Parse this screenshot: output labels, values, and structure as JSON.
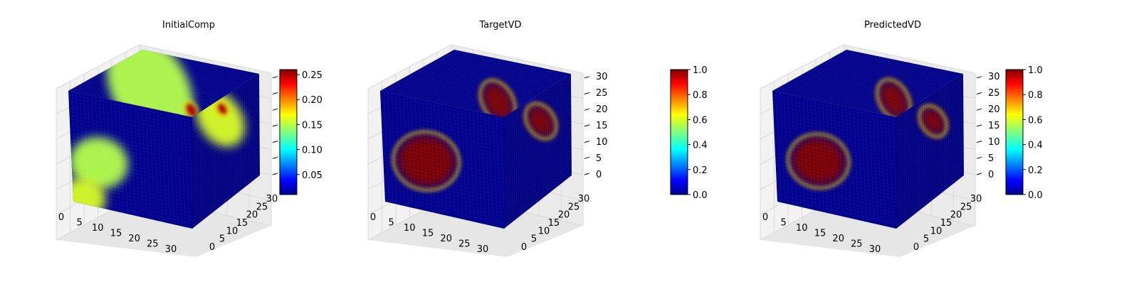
{
  "figure": {
    "background": "#ffffff",
    "pane_color": "#f2f2f2",
    "grid_color": "#d9d9d9",
    "low_color": "#00008f",
    "colormap": "jet"
  },
  "chart_data": [
    {
      "type": "heatmap",
      "title": "InitialComp",
      "volume_shape": [
        32,
        32,
        32
      ],
      "x_ticks": [
        "0",
        "5",
        "10",
        "15",
        "20",
        "25",
        "30"
      ],
      "y_ticks": [
        "0",
        "5",
        "10",
        "15",
        "20",
        "25",
        "30"
      ],
      "z_ticks": [],
      "colorbar": {
        "ticks": [
          "0.05",
          "0.10",
          "0.15",
          "0.20",
          "0.25"
        ],
        "tick_values": [
          0.05,
          0.1,
          0.15,
          0.2,
          0.25
        ],
        "range": [
          0.01,
          0.26
        ]
      },
      "blobs": [
        {
          "face": "top",
          "u": 0.35,
          "v": 0.45,
          "r": 0.5,
          "value": 0.15
        },
        {
          "face": "top",
          "u": 0.12,
          "v": 0.92,
          "r": 0.07,
          "value": 0.25
        },
        {
          "face": "front",
          "u": 0.22,
          "v": 0.6,
          "r": 0.26,
          "value": 0.15
        },
        {
          "face": "front",
          "u": 0.08,
          "v": 0.95,
          "r": 0.2,
          "value": 0.16
        },
        {
          "face": "side",
          "u": 0.42,
          "v": 0.18,
          "r": 0.3,
          "value": 0.16
        },
        {
          "face": "side",
          "u": 0.45,
          "v": 0.1,
          "r": 0.07,
          "value": 0.25
        }
      ]
    },
    {
      "type": "heatmap",
      "title": "TargetVD",
      "volume_shape": [
        32,
        32,
        32
      ],
      "x_ticks": [
        "0",
        "5",
        "10",
        "15",
        "20",
        "25",
        "30"
      ],
      "y_ticks": [
        "0",
        "5",
        "10",
        "15",
        "20",
        "25",
        "30"
      ],
      "z_ticks": [
        "0",
        "5",
        "10",
        "15",
        "20",
        "25",
        "30"
      ],
      "colorbar": {
        "ticks": [
          "0.0",
          "0.2",
          "0.4",
          "0.6",
          "0.8",
          "1.0"
        ],
        "tick_values": [
          0,
          0.2,
          0.4,
          0.6,
          0.8,
          1.0
        ],
        "range": [
          0,
          1
        ]
      },
      "blobs": [
        {
          "face": "top",
          "u": 0.25,
          "v": 0.8,
          "r": 0.18,
          "value": 1.0
        },
        {
          "face": "front",
          "u": 0.35,
          "v": 0.55,
          "r": 0.26,
          "value": 1.0
        },
        {
          "face": "side",
          "u": 0.55,
          "v": 0.25,
          "r": 0.17,
          "value": 1.0
        }
      ]
    },
    {
      "type": "heatmap",
      "title": "PredictedVD",
      "volume_shape": [
        32,
        32,
        32
      ],
      "x_ticks": [
        "0",
        "5",
        "10",
        "15",
        "20",
        "25",
        "30"
      ],
      "y_ticks": [
        "0",
        "5",
        "10",
        "15",
        "20",
        "25",
        "30"
      ],
      "z_ticks": [
        "0",
        "5",
        "10",
        "15",
        "20",
        "25",
        "30"
      ],
      "colorbar": {
        "ticks": [
          "0.0",
          "0.2",
          "0.4",
          "0.6",
          "0.8",
          "1.0"
        ],
        "tick_values": [
          0,
          0.2,
          0.4,
          0.6,
          0.8,
          1.0
        ],
        "range": [
          0,
          1
        ]
      },
      "blobs": [
        {
          "face": "top",
          "u": 0.3,
          "v": 0.8,
          "r": 0.17,
          "value": 1.0
        },
        {
          "face": "front",
          "u": 0.35,
          "v": 0.55,
          "r": 0.24,
          "value": 1.0
        },
        {
          "face": "side",
          "u": 0.55,
          "v": 0.25,
          "r": 0.15,
          "value": 1.0
        }
      ]
    }
  ]
}
